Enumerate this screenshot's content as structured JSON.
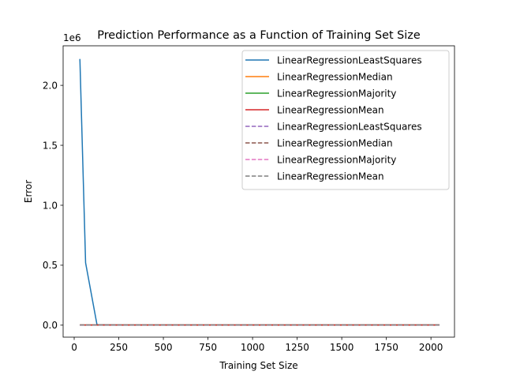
{
  "chart_data": {
    "type": "line",
    "title": "Prediction Performance as a Function of Training Set Size",
    "xlabel": "Training Set Size",
    "ylabel": "Error",
    "y_scale_label": "1e6",
    "xlim": [
      -62,
      2132
    ],
    "ylim": [
      -100000,
      2330000
    ],
    "x_ticks": [
      0,
      250,
      500,
      750,
      1000,
      1250,
      1500,
      1750,
      2000
    ],
    "x_tick_labels": [
      "0",
      "250",
      "500",
      "750",
      "1000",
      "1250",
      "1500",
      "1750",
      "2000"
    ],
    "y_ticks": [
      0,
      500000,
      1000000,
      1500000,
      2000000
    ],
    "y_tick_labels": [
      "0.0",
      "0.5",
      "1.0",
      "1.5",
      "2.0"
    ],
    "grid": false,
    "legend_position": "top-right",
    "x": [
      32,
      64,
      128,
      256,
      512,
      1024,
      2048
    ],
    "series": [
      {
        "name": "LinearRegressionLeastSquares",
        "color": "#1f77b4",
        "style": "solid",
        "values": [
          2220000,
          520000,
          3000,
          1500,
          1200,
          1000,
          900
        ]
      },
      {
        "name": "LinearRegressionMedian",
        "color": "#ff7f0e",
        "style": "solid",
        "values": [
          1000,
          1000,
          1000,
          1000,
          1000,
          1000,
          1000
        ]
      },
      {
        "name": "LinearRegressionMajority",
        "color": "#2ca02c",
        "style": "solid",
        "values": [
          1000,
          1000,
          1000,
          1000,
          1000,
          1000,
          1000
        ]
      },
      {
        "name": "LinearRegressionMean",
        "color": "#d62728",
        "style": "solid",
        "values": [
          1000,
          1000,
          1000,
          1000,
          1000,
          1000,
          1000
        ]
      },
      {
        "name": "LinearRegressionLeastSquares",
        "color": "#9467bd",
        "style": "dashed",
        "values": [
          500,
          500,
          500,
          500,
          500,
          500,
          500
        ]
      },
      {
        "name": "LinearRegressionMedian",
        "color": "#8c564b",
        "style": "dashed",
        "values": [
          900,
          900,
          900,
          900,
          900,
          900,
          900
        ]
      },
      {
        "name": "LinearRegressionMajority",
        "color": "#e377c2",
        "style": "dashed",
        "values": [
          900,
          900,
          900,
          900,
          900,
          900,
          900
        ]
      },
      {
        "name": "LinearRegressionMean",
        "color": "#7f7f7f",
        "style": "dashed",
        "values": [
          900,
          900,
          900,
          900,
          900,
          900,
          900
        ]
      }
    ]
  }
}
